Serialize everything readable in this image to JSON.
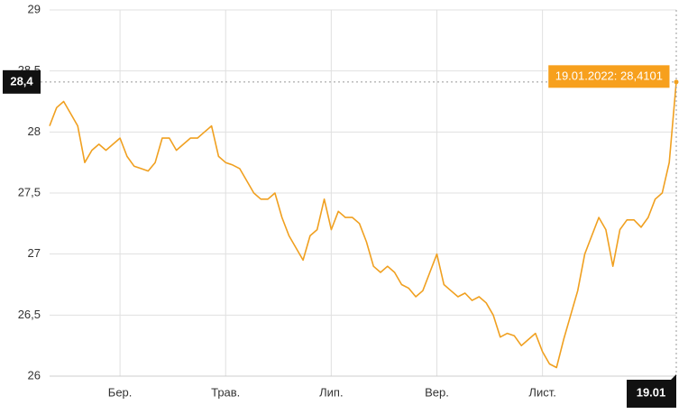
{
  "chart_data": {
    "type": "line",
    "color": "#f0a020",
    "categories": [
      null,
      null,
      null,
      null,
      null,
      null,
      null,
      null,
      null,
      null,
      "Бер.",
      null,
      null,
      null,
      null,
      null,
      null,
      null,
      null,
      null,
      null,
      null,
      null,
      null,
      null,
      "Трав.",
      null,
      null,
      null,
      null,
      null,
      null,
      null,
      null,
      null,
      null,
      null,
      null,
      null,
      null,
      "Лип.",
      null,
      null,
      null,
      null,
      null,
      null,
      null,
      null,
      null,
      null,
      null,
      null,
      null,
      null,
      "Вер.",
      null,
      null,
      null,
      null,
      null,
      null,
      null,
      null,
      null,
      null,
      null,
      null,
      null,
      null,
      "Лист.",
      null,
      null,
      null,
      null,
      null,
      null,
      null,
      null,
      null,
      null,
      null,
      null,
      null,
      null,
      null,
      null,
      null,
      null,
      "19.01"
    ],
    "values": [
      28.05,
      28.2,
      28.25,
      28.15,
      28.05,
      27.75,
      27.85,
      27.9,
      27.85,
      27.9,
      27.95,
      27.8,
      27.72,
      27.7,
      27.68,
      27.75,
      27.95,
      27.95,
      27.85,
      27.9,
      27.95,
      27.95,
      28.0,
      28.05,
      27.8,
      27.75,
      27.73,
      27.7,
      27.6,
      27.5,
      27.45,
      27.45,
      27.5,
      27.3,
      27.15,
      27.05,
      26.95,
      27.15,
      27.2,
      27.45,
      27.2,
      27.35,
      27.3,
      27.3,
      27.25,
      27.1,
      26.9,
      26.85,
      26.9,
      26.85,
      26.75,
      26.72,
      26.65,
      26.7,
      26.85,
      27.0,
      26.75,
      26.7,
      26.65,
      26.68,
      26.62,
      26.65,
      26.6,
      26.5,
      26.32,
      26.35,
      26.33,
      26.25,
      26.3,
      26.35,
      26.2,
      26.1,
      26.07,
      26.3,
      26.5,
      26.7,
      27.0,
      27.15,
      27.3,
      27.2,
      26.9,
      27.2,
      27.28,
      27.28,
      27.22,
      27.3,
      27.45,
      27.5,
      27.75,
      28.4101
    ],
    "ylim": [
      26,
      29
    ],
    "yticks": [
      26,
      {
        "value": 26.5,
        "label": "26,5"
      },
      27,
      {
        "value": 27.5,
        "label": "27,5"
      },
      28,
      {
        "value": 28.5,
        "label": "28,5"
      },
      29
    ],
    "grid": true,
    "tooltip": "19.01.2022: 28,4101",
    "crosshair_label": "28,4"
  }
}
